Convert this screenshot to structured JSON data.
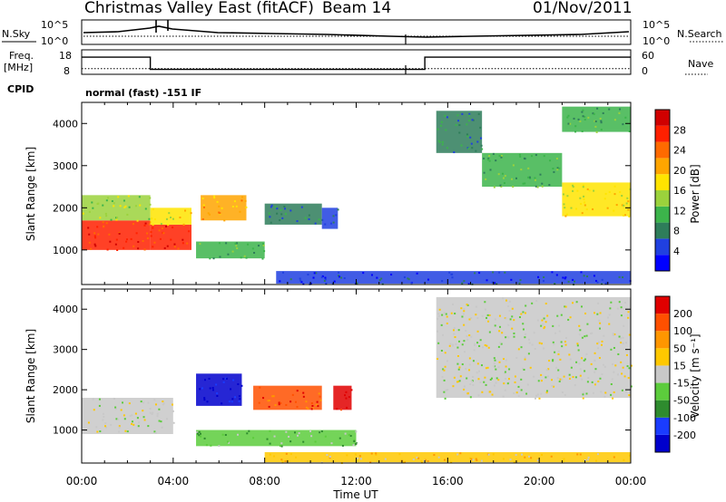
{
  "header": {
    "title": "Christmas Valley East (fitACF)",
    "beam_label": "Beam 14",
    "date": "01/Nov/2011"
  },
  "top_panels": {
    "nsky_label": "N.Sky",
    "nsearch_label": "N.Search",
    "noise_ticks_left": [
      "10^5",
      "10^0"
    ],
    "noise_ticks_right": [
      "10^5",
      "10^0"
    ],
    "freq_label_line1": "Freq.",
    "freq_label_line2": "[MHz]",
    "freq_ticks": [
      "18",
      "8"
    ],
    "nave_label": "Nave",
    "nave_ticks": [
      "60",
      "0"
    ],
    "cpid_label": "CPID",
    "cpid_value": "normal (fast) -151 IF"
  },
  "x_axis": {
    "label": "Time UT",
    "ticks": [
      "00:00",
      "04:00",
      "08:00",
      "12:00",
      "16:00",
      "20:00",
      "00:00"
    ]
  },
  "power_panel": {
    "ylabel": "Slant Range [km]",
    "colorbar_label": "Power [dB]",
    "colorbar_ticks": [
      "28",
      "24",
      "20",
      "16",
      "12",
      "8",
      "4"
    ],
    "colors": [
      "#0000ff",
      "#2040e0",
      "#2e7d5a",
      "#3cb44b",
      "#9bd23c",
      "#ffe400",
      "#ffa500",
      "#ff6a00",
      "#ff2000",
      "#d00000"
    ]
  },
  "velocity_panel": {
    "ylabel": "Slant Range [km]",
    "colorbar_label": "Velocity [m s⁻¹]",
    "colorbar_ticks": [
      "200",
      "100",
      "50",
      "15",
      "-15",
      "-50",
      "-100",
      "-200"
    ],
    "colors": [
      "#0000cc",
      "#1a3cff",
      "#2e8b2e",
      "#5ccc3c",
      "#c8c8c8",
      "#ffc800",
      "#ff9600",
      "#ff5000",
      "#e00000"
    ]
  },
  "chart_data": {
    "type": "heatmap",
    "x_range_hours": [
      0,
      24
    ],
    "y_range_km": [
      180,
      4500
    ],
    "y_ticks_km": [
      1000,
      2000,
      3000,
      4000
    ],
    "frequency_MHz": {
      "segments": [
        {
          "start_h": 0,
          "end_h": 3.0,
          "value": 15
        },
        {
          "start_h": 3.0,
          "end_h": 15.0,
          "value": 10
        },
        {
          "start_h": 15.0,
          "end_h": 24,
          "value": 15
        }
      ],
      "ylim": [
        8,
        18
      ]
    },
    "nave": {
      "value": 14,
      "ylim": [
        0,
        60
      ]
    },
    "power_regions": [
      {
        "t0": 0.0,
        "t1": 3.0,
        "r0": 1000,
        "r1": 1700,
        "level": 8
      },
      {
        "t0": 0.0,
        "t1": 3.0,
        "r0": 1700,
        "r1": 2300,
        "level": 4
      },
      {
        "t0": 3.0,
        "t1": 4.8,
        "r0": 1000,
        "r1": 1600,
        "level": 8
      },
      {
        "t0": 3.0,
        "t1": 4.8,
        "r0": 1600,
        "r1": 2000,
        "level": 5
      },
      {
        "t0": 5.2,
        "t1": 7.2,
        "r0": 1700,
        "r1": 2300,
        "level": 6
      },
      {
        "t0": 5.0,
        "t1": 8.0,
        "r0": 800,
        "r1": 1200,
        "level": 3
      },
      {
        "t0": 8.0,
        "t1": 10.5,
        "r0": 1600,
        "r1": 2100,
        "level": 2
      },
      {
        "t0": 10.5,
        "t1": 11.2,
        "r0": 1500,
        "r1": 2000,
        "level": 1
      },
      {
        "t0": 8.5,
        "t1": 24,
        "r0": 200,
        "r1": 500,
        "level": 1
      },
      {
        "t0": 15.5,
        "t1": 17.5,
        "r0": 3300,
        "r1": 4300,
        "level": 2
      },
      {
        "t0": 17.5,
        "t1": 21.0,
        "r0": 2500,
        "r1": 3300,
        "level": 3
      },
      {
        "t0": 21.0,
        "t1": 24,
        "r0": 1800,
        "r1": 2600,
        "level": 5
      },
      {
        "t0": 21.0,
        "t1": 24,
        "r0": 3800,
        "r1": 4400,
        "level": 3
      }
    ],
    "velocity_regions": [
      {
        "t0": 0.0,
        "t1": 4.0,
        "r0": 900,
        "r1": 1800,
        "level": 4
      },
      {
        "t0": 5.0,
        "t1": 7.0,
        "r0": 1600,
        "r1": 2400,
        "level": 0
      },
      {
        "t0": 7.5,
        "t1": 10.5,
        "r0": 1500,
        "r1": 2100,
        "level": 7
      },
      {
        "t0": 11.0,
        "t1": 11.8,
        "r0": 1500,
        "r1": 2100,
        "level": 8
      },
      {
        "t0": 5.0,
        "t1": 12.0,
        "r0": 600,
        "r1": 1000,
        "level": 3
      },
      {
        "t0": 8.0,
        "t1": 24,
        "r0": 200,
        "r1": 450,
        "level": 5
      },
      {
        "t0": 15.5,
        "t1": 24,
        "r0": 1800,
        "r1": 4300,
        "level": 4
      }
    ]
  }
}
